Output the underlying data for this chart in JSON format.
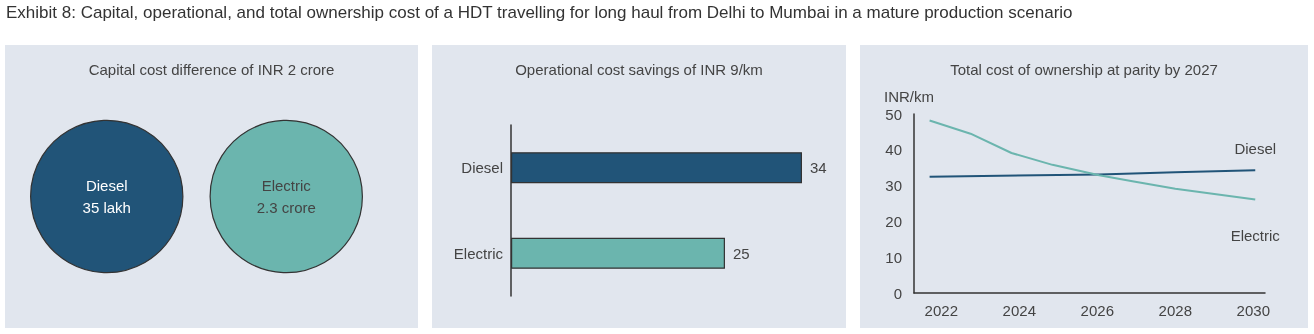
{
  "chart_data": [
    {
      "type": "other",
      "title": "Capital cost difference of INR 2 crore",
      "annotations": [
        "Exhibit 8: Capital, operational, and total ownership cost of a HDT travelling for long haul from Delhi to Mumbai in a mature production scenario"
      ],
      "categories": [
        "Diesel",
        "Electric"
      ],
      "value_labels": [
        "35 lakh",
        "2.3 crore"
      ],
      "colors": [
        "#215478",
        "#6bb5ae"
      ]
    },
    {
      "type": "bar",
      "orientation": "horizontal",
      "title": "Operational cost savings of INR 9/km",
      "categories": [
        "Diesel",
        "Electric"
      ],
      "values": [
        34,
        25
      ],
      "colors": [
        "#215478",
        "#6bb5ae"
      ],
      "data_labels": true
    },
    {
      "type": "line",
      "title": "Total cost of ownership at parity by 2027",
      "ylabel": "INR/km",
      "xlim": [
        2021.3,
        2030.3
      ],
      "xticks": [
        2022,
        2024,
        2026,
        2028,
        2030
      ],
      "ylim": [
        0,
        50
      ],
      "yticks": [
        0,
        10,
        20,
        30,
        40,
        50
      ],
      "grid": false,
      "legend": false,
      "marker": "none",
      "series": [
        {
          "name": "Diesel",
          "color": "#215478",
          "x": [
            2021.7,
            2026.05,
            2028.0,
            2030.05
          ],
          "values": [
            32.5,
            33.1,
            33.7,
            34.3
          ]
        },
        {
          "name": "Electric",
          "color": "#6bb5ae",
          "x": [
            2021.7,
            2022.75,
            2023.8,
            2024.85,
            2026.05,
            2026.9,
            2028.0,
            2030.05
          ],
          "values": [
            48.2,
            44.5,
            39.1,
            35.8,
            32.9,
            31.2,
            29.1,
            26.1
          ]
        }
      ]
    }
  ]
}
